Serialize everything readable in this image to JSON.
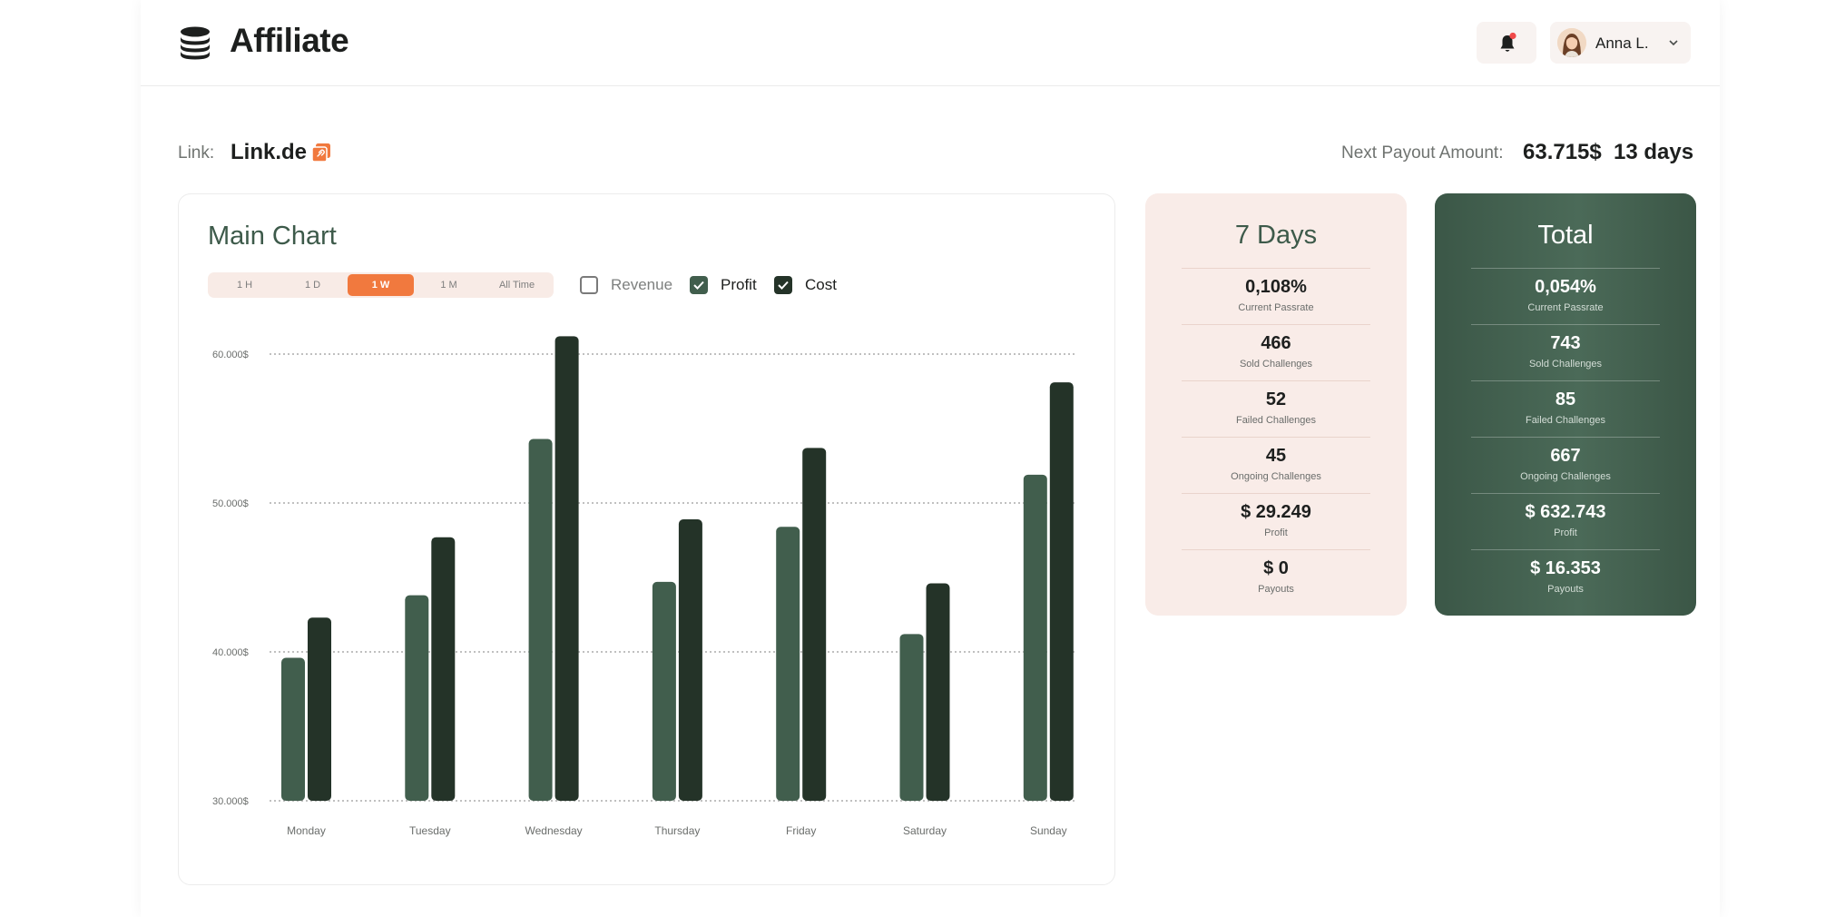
{
  "header": {
    "brand": "Affiliate",
    "user_name": "Anna L.",
    "notification_color": "#f04a4a"
  },
  "link_row": {
    "label": "Link:",
    "value": "Link.de",
    "payout_label": "Next Payout Amount:",
    "payout_amount": "63.715$",
    "payout_days": "13 days"
  },
  "main_chart": {
    "title": "Main Chart",
    "ranges": [
      {
        "label": "1 H",
        "active": false
      },
      {
        "label": "1 D",
        "active": false
      },
      {
        "label": "1 W",
        "active": true
      },
      {
        "label": "1 M",
        "active": false
      },
      {
        "label": "All Time",
        "active": false
      }
    ],
    "legend": [
      {
        "label": "Revenue",
        "checked": false
      },
      {
        "label": "Profit",
        "checked": true
      },
      {
        "label": "Cost",
        "checked": true
      }
    ]
  },
  "chart_data": {
    "type": "bar",
    "categories": [
      "Monday",
      "Tuesday",
      "Wednesday",
      "Thursday",
      "Friday",
      "Saturday",
      "Sunday"
    ],
    "series": [
      {
        "name": "Profit",
        "color": "#415e4d",
        "values": [
          39600,
          43800,
          54300,
          44700,
          48400,
          41200,
          51900
        ]
      },
      {
        "name": "Cost",
        "color": "#243328",
        "values": [
          42300,
          47700,
          61200,
          48900,
          53700,
          44600,
          58100
        ]
      }
    ],
    "yticks": [
      "30.000$",
      "40.000$",
      "50.000$",
      "60.000$"
    ],
    "ytick_values": [
      30000,
      40000,
      50000,
      60000
    ],
    "ylim": [
      30000,
      61200
    ],
    "grid": true
  },
  "stats_7days": {
    "title": "7 Days",
    "items": [
      {
        "value": "0,108%",
        "label": "Current Passrate"
      },
      {
        "value": "466",
        "label": "Sold Challenges"
      },
      {
        "value": "52",
        "label": "Failed Challenges"
      },
      {
        "value": "45",
        "label": "Ongoing Challenges"
      },
      {
        "value": "$ 29.249",
        "label": "Profit"
      },
      {
        "value": "$ 0",
        "label": "Payouts"
      }
    ]
  },
  "stats_total": {
    "title": "Total",
    "items": [
      {
        "value": "0,054%",
        "label": "Current Passrate"
      },
      {
        "value": "743",
        "label": "Sold Challenges"
      },
      {
        "value": "85",
        "label": "Failed Challenges"
      },
      {
        "value": "667",
        "label": "Ongoing Challenges"
      },
      {
        "value": "$ 632.743",
        "label": "Profit"
      },
      {
        "value": "$ 16.353",
        "label": "Payouts"
      }
    ]
  },
  "colors": {
    "accent_orange": "#f1793e",
    "profit_green": "#415e4d",
    "cost_dark": "#243328",
    "peach_bg": "#f9ece8"
  }
}
